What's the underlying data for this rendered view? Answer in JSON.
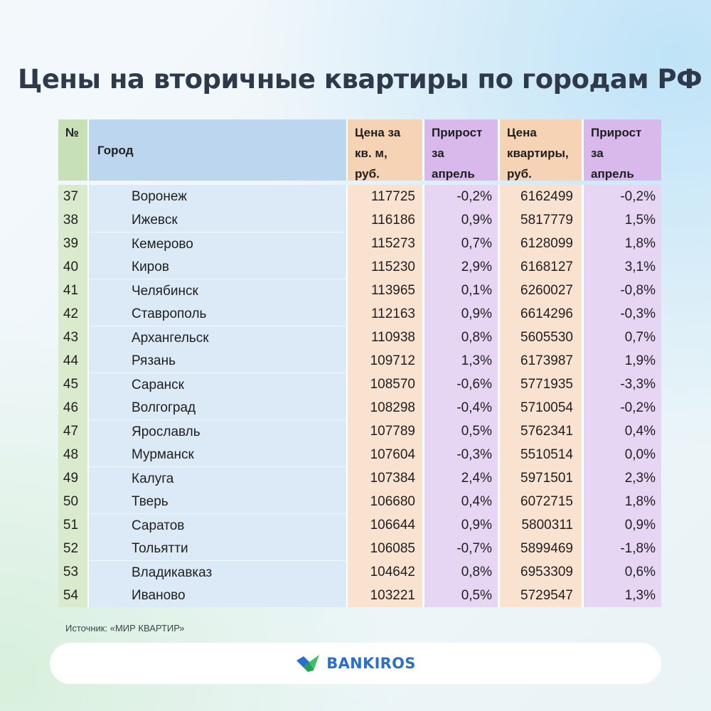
{
  "title": "Цены на вторичные квартиры по городам РФ",
  "table": {
    "headers": {
      "num": "№",
      "city": "Город",
      "price_per_sqm": "Цена за\nкв. м,\nруб.",
      "growth_1": "Прирост\nза\nапрель",
      "price_apartment": "Цена\nквартиры,\nруб.",
      "growth_2": "Прирост\nза\nапрель"
    },
    "rows": [
      {
        "num": "37",
        "city": "Воронеж",
        "price_per_sqm": "117725",
        "growth_1": "-0,2%",
        "price_apartment": "6162499",
        "growth_2": "-0,2%"
      },
      {
        "num": "38",
        "city": "Ижевск",
        "price_per_sqm": "116186",
        "growth_1": "0,9%",
        "price_apartment": "5817779",
        "growth_2": "1,5%"
      },
      {
        "num": "39",
        "city": "Кемерово",
        "price_per_sqm": "115273",
        "growth_1": "0,7%",
        "price_apartment": "6128099",
        "growth_2": "1,8%"
      },
      {
        "num": "40",
        "city": "Киров",
        "price_per_sqm": "115230",
        "growth_1": "2,9%",
        "price_apartment": "6168127",
        "growth_2": "3,1%"
      },
      {
        "num": "41",
        "city": "Челябинск",
        "price_per_sqm": "113965",
        "growth_1": "0,1%",
        "price_apartment": "6260027",
        "growth_2": "-0,8%"
      },
      {
        "num": "42",
        "city": "Ставрополь",
        "price_per_sqm": "112163",
        "growth_1": "0,9%",
        "price_apartment": "6614296",
        "growth_2": "-0,3%"
      },
      {
        "num": "43",
        "city": "Архангельск",
        "price_per_sqm": "110938",
        "growth_1": "0,8%",
        "price_apartment": "5605530",
        "growth_2": "0,7%"
      },
      {
        "num": "44",
        "city": "Рязань",
        "price_per_sqm": "109712",
        "growth_1": "1,3%",
        "price_apartment": "6173987",
        "growth_2": "1,9%"
      },
      {
        "num": "45",
        "city": "Саранск",
        "price_per_sqm": "108570",
        "growth_1": "-0,6%",
        "price_apartment": "5771935",
        "growth_2": "-3,3%"
      },
      {
        "num": "46",
        "city": "Волгоград",
        "price_per_sqm": "108298",
        "growth_1": "-0,4%",
        "price_apartment": "5710054",
        "growth_2": "-0,2%"
      },
      {
        "num": "47",
        "city": "Ярославль",
        "price_per_sqm": "107789",
        "growth_1": "0,5%",
        "price_apartment": "5762341",
        "growth_2": "0,4%"
      },
      {
        "num": "48",
        "city": "Мурманск",
        "price_per_sqm": "107604",
        "growth_1": "-0,3%",
        "price_apartment": "5510514",
        "growth_2": "0,0%"
      },
      {
        "num": "49",
        "city": "Калуга",
        "price_per_sqm": "107384",
        "growth_1": "2,4%",
        "price_apartment": "5971501",
        "growth_2": "2,3%"
      },
      {
        "num": "50",
        "city": "Тверь",
        "price_per_sqm": "106680",
        "growth_1": "0,4%",
        "price_apartment": "6072715",
        "growth_2": "1,8%"
      },
      {
        "num": "51",
        "city": "Саратов",
        "price_per_sqm": "106644",
        "growth_1": "0,9%",
        "price_apartment": "5800311",
        "growth_2": "0,9%"
      },
      {
        "num": "52",
        "city": "Тольятти",
        "price_per_sqm": "106085",
        "growth_1": "-0,7%",
        "price_apartment": "5899469",
        "growth_2": "-1,8%"
      },
      {
        "num": "53",
        "city": "Владикавказ",
        "price_per_sqm": "104642",
        "growth_1": "0,8%",
        "price_apartment": "6953309",
        "growth_2": "0,6%"
      },
      {
        "num": "54",
        "city": "Иваново",
        "price_per_sqm": "103221",
        "growth_1": "0,5%",
        "price_apartment": "5729547",
        "growth_2": "1,3%"
      }
    ]
  },
  "source": "Источник: «МИР КВАРТИР»",
  "footer": {
    "brand_name": "BANKIROS",
    "logo_icon": "bankiros-logo-icon"
  },
  "colors": {
    "title": "#2e3a4b",
    "brand": "#2a6fd0",
    "header_num": "#c8e0b8",
    "header_city": "#bcd6ef",
    "header_price": "#f7d3b6",
    "header_growth": "#d9b9ec"
  }
}
